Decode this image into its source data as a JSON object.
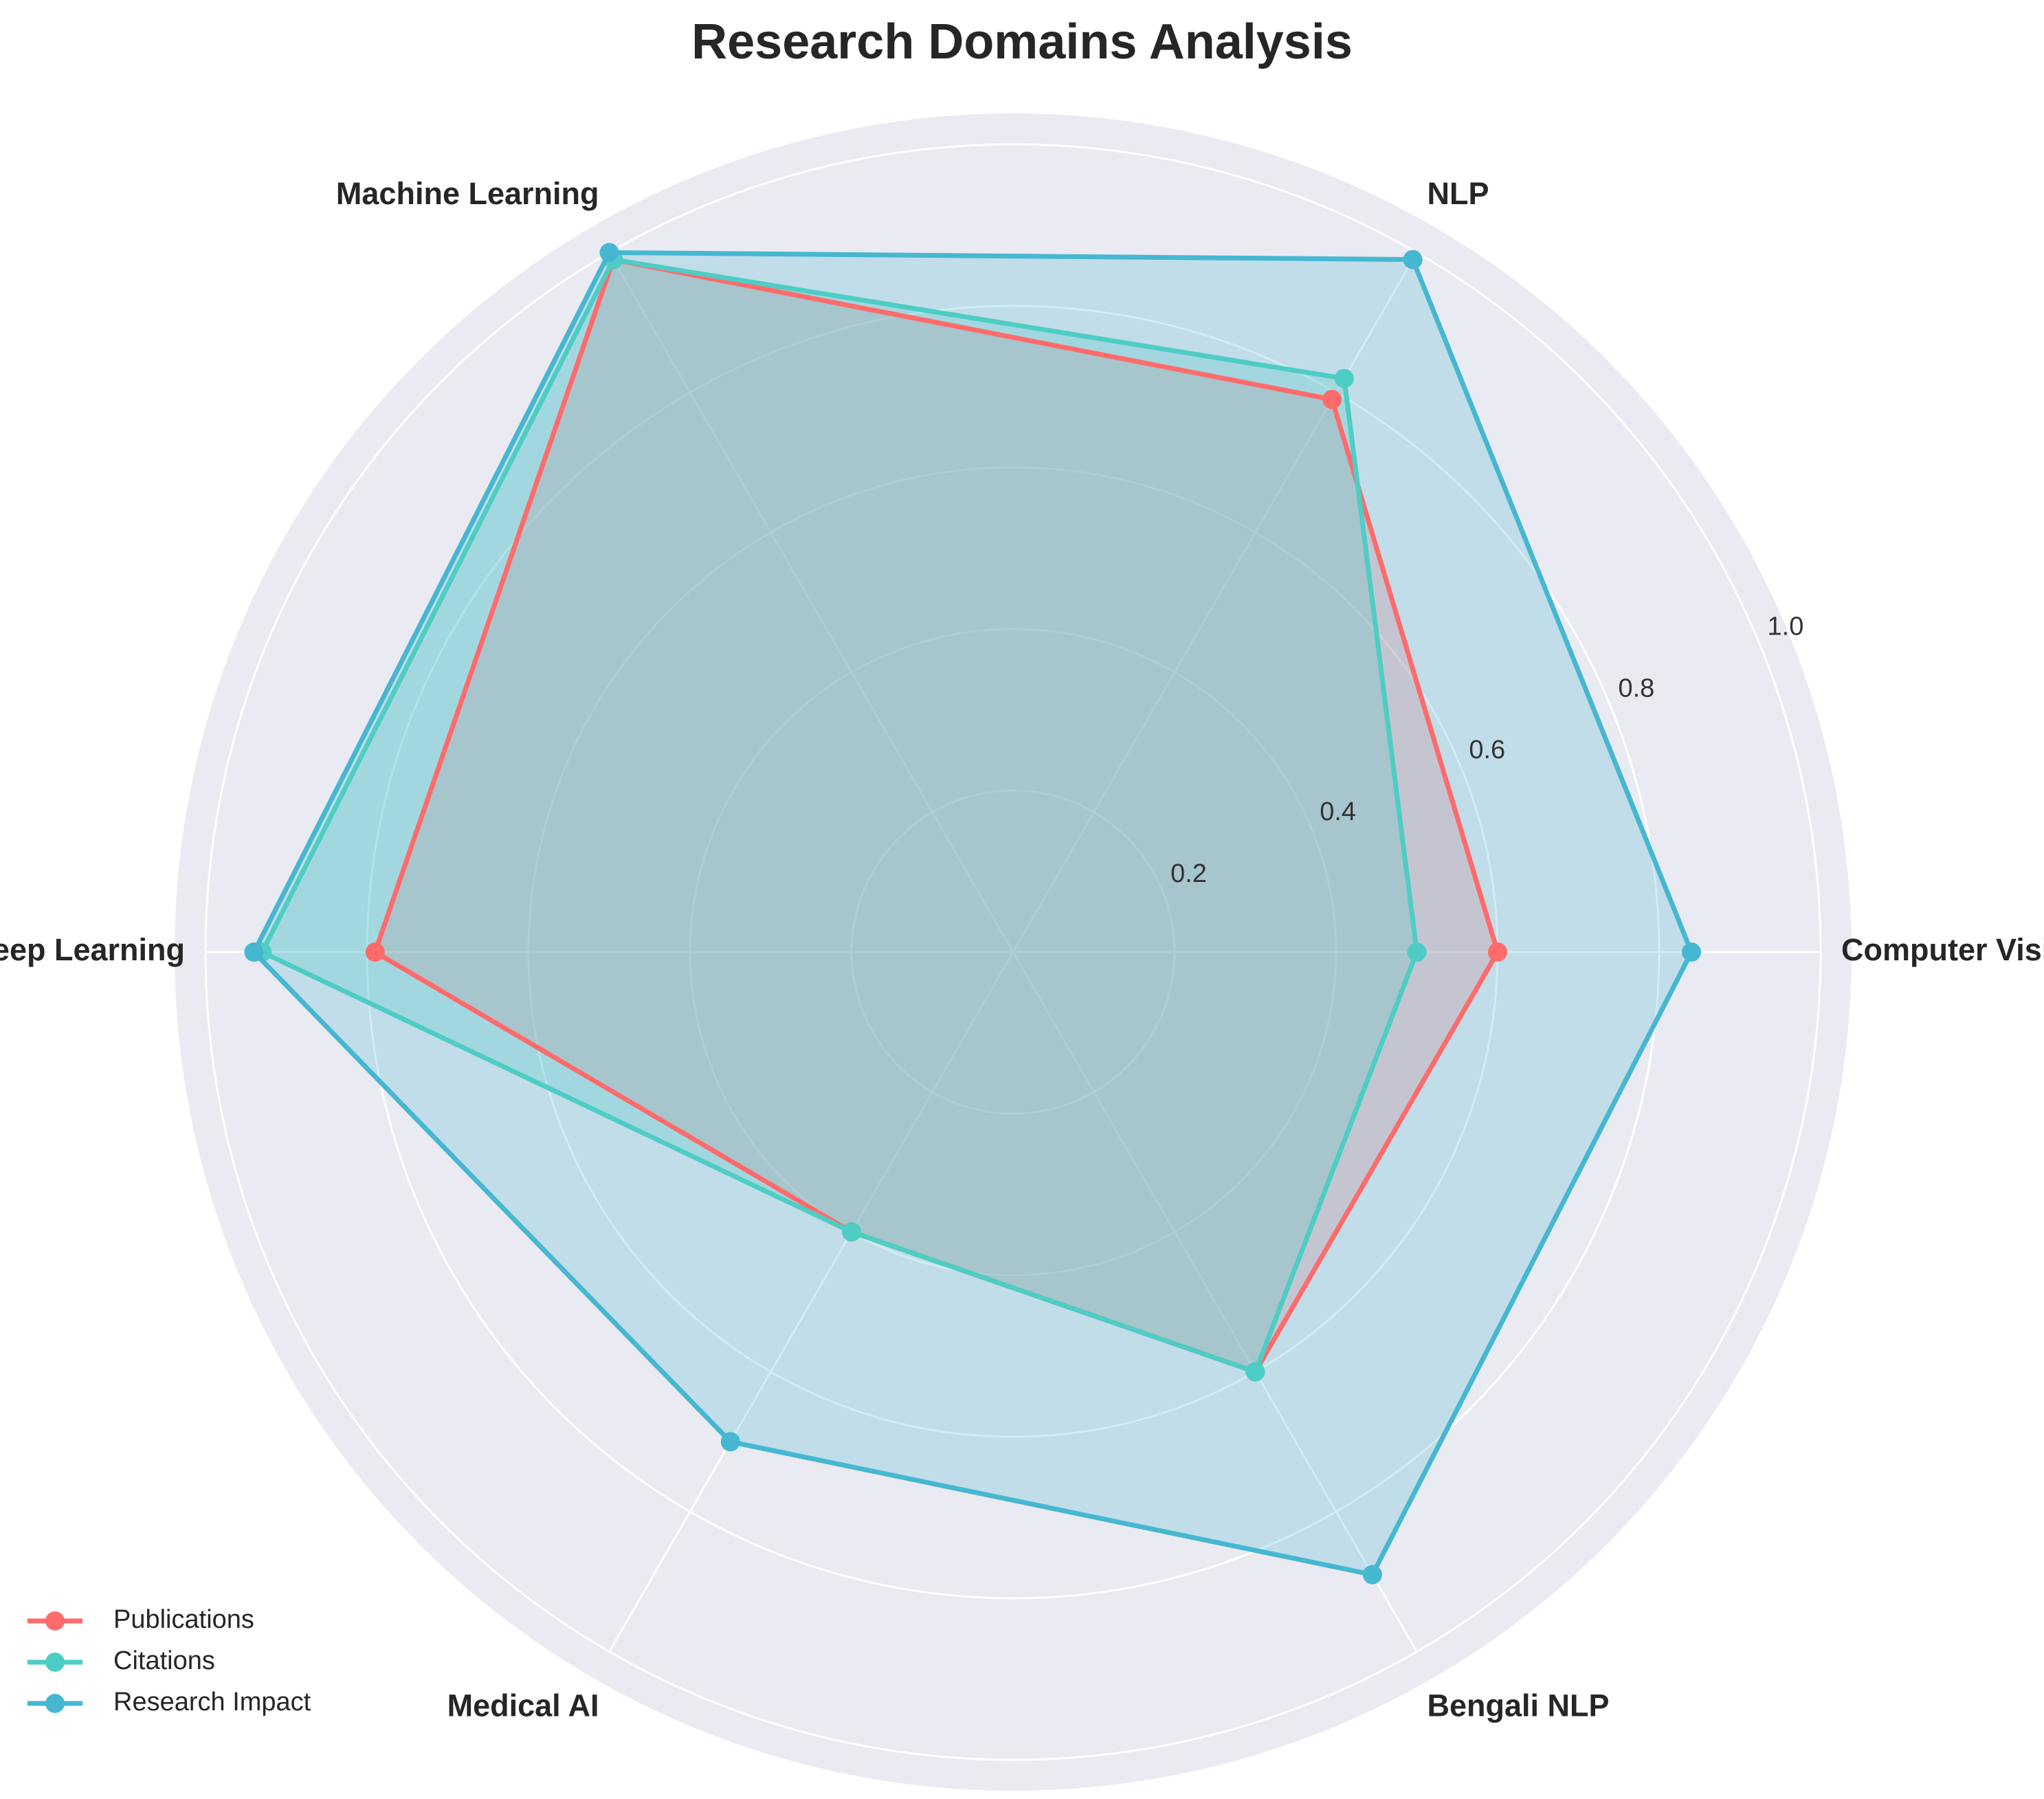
{
  "chart_data": {
    "type": "radar",
    "title": "Research Domains Analysis",
    "categories": [
      "Computer Vision",
      "NLP",
      "Machine Learning",
      "Deep Learning",
      "Medical AI",
      "Bengali NLP"
    ],
    "series": [
      {
        "name": "Publications",
        "color": "#FF6B6B",
        "values": [
          0.6,
          0.79,
          0.99,
          0.79,
          0.4,
          0.6
        ]
      },
      {
        "name": "Citations",
        "color": "#4ECDC4",
        "values": [
          0.5,
          0.82,
          0.99,
          0.93,
          0.4,
          0.6
        ]
      },
      {
        "name": "Research Impact",
        "color": "#45B7D1",
        "values": [
          0.84,
          0.99,
          1.0,
          0.94,
          0.7,
          0.89
        ]
      }
    ],
    "rlim": [
      0,
      1.0
    ],
    "rticks": [
      0.2,
      0.4,
      0.6,
      0.8,
      1.0
    ],
    "rtick_labels": [
      "0.2",
      "0.4",
      "0.6",
      "0.8",
      "1.0"
    ],
    "grid": true,
    "legend_position": "bottom-left",
    "background_color": "#EAEAF2",
    "grid_color": "#FFFFFF"
  }
}
